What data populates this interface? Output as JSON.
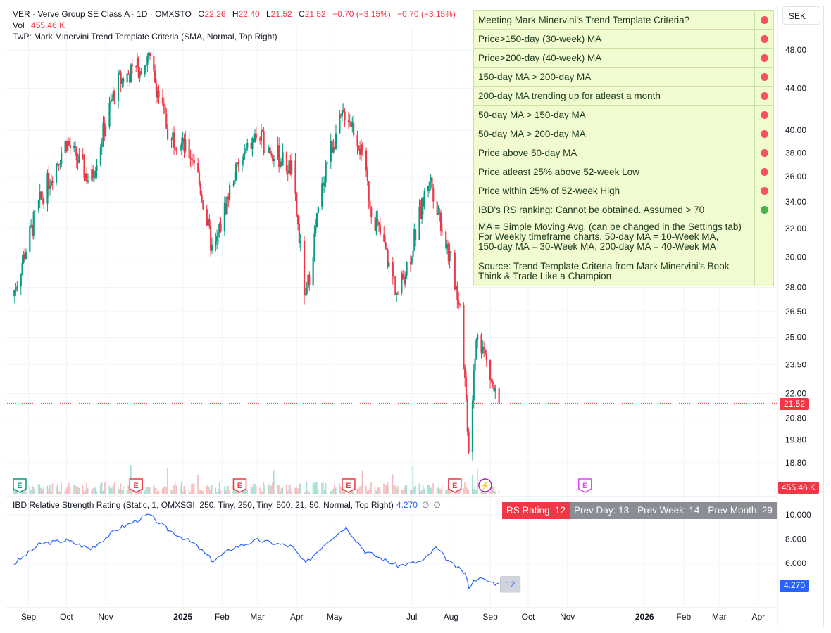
{
  "header": {
    "symbol_line": "VER · Verve Group SE Class A · 1D · OMXSTO",
    "o_label": "O",
    "o_value": "22.26",
    "h_label": "H",
    "h_value": "22.40",
    "l_label": "L",
    "l_value": "21.52",
    "c_label": "C",
    "c_value": "21.52",
    "change": "−0.70 (−3.15%)",
    "change2": "−0.70 (−3.15%)",
    "vol_label": "Vol",
    "vol_value": "455.46 K",
    "indicator_line": "TwP: Mark Minervini Trend Template Criteria (SMA, Normal, Top Right)"
  },
  "currency_button": "SEK",
  "trend_template": {
    "rows": [
      {
        "label": "Meeting Mark Minervini's Trend Template Criteria?",
        "status": "red"
      },
      {
        "label": "Price>150-day (30-week) MA",
        "status": "red"
      },
      {
        "label": "Price>200-day (40-week) MA",
        "status": "red"
      },
      {
        "label": "150-day MA > 200-day MA",
        "status": "red"
      },
      {
        "label": "200-day MA trending up for atleast a month",
        "status": "red"
      },
      {
        "label": "50-day MA > 150-day MA",
        "status": "red"
      },
      {
        "label": "50-day MA > 200-day MA",
        "status": "red"
      },
      {
        "label": "Price above 50-day MA",
        "status": "red"
      },
      {
        "label": "Price atleast 25% above 52-week Low",
        "status": "red"
      },
      {
        "label": "Price within 25% of 52-week High",
        "status": "red"
      },
      {
        "label": "IBD's RS ranking: Cannot be obtained. Assumed > 70",
        "status": "green"
      }
    ],
    "notes": "MA = Simple Moving Avg. (can be changed in the Settings tab)\nFor Weekly timeframe charts, 50-day MA = 10-Week MA,\n150-day MA = 30-Week MA, 200-day MA = 40-Week MA\n\nSource: Trend Template Criteria from Mark Minervini's Book\nThink & Trade Like a Champion"
  },
  "rs_indicator": {
    "label": "IBD Relative Strength Rating (Static, 1, OMXSGI, 250, Tiny, 250, Tiny, 500, 21, 50, Normal, Top Right)",
    "value": "4.270",
    "opt1": "∅",
    "opt2": "∅",
    "rs_rating": "RS Rating: 12",
    "prev_day": "Prev Day: 13",
    "prev_week": "Prev Week: 14",
    "prev_month": "Prev Month: 29",
    "line_end_label": "12"
  },
  "price_tags": {
    "last_price": "21.52",
    "volume": "455.46 K",
    "rs_value": "4.270"
  },
  "colors": {
    "up": "#089981",
    "down": "#f23645",
    "rs_line": "#2962ff",
    "red_dot": "#f7525f",
    "green_dot": "#4caf50",
    "panel_bg": "#f0fbd0"
  },
  "chart_data": {
    "type": "candlestick",
    "x_ticks": [
      "Sep",
      "Oct",
      "Nov",
      "2025",
      "Feb",
      "Mar",
      "Apr",
      "May",
      "Jul",
      "Aug",
      "Sep",
      "Oct",
      "Nov",
      "2026",
      "Feb",
      "Mar",
      "Apr"
    ],
    "price_ticks": [
      "48.00",
      "44.00",
      "40.00",
      "38.00",
      "36.00",
      "34.00",
      "32.00",
      "30.00",
      "28.00",
      "26.50",
      "25.00",
      "23.50",
      "22.00",
      "20.80",
      "19.80",
      "18.80"
    ],
    "rs_ticks": [
      "10.000",
      "8.000",
      "6.000"
    ],
    "price_scale": "log",
    "events": [
      "E",
      "E",
      "E",
      "E",
      "E",
      "⚡",
      "E"
    ],
    "approx_close_path": [
      {
        "date": "2024-08-20",
        "close": 27.5
      },
      {
        "date": "2024-09-10",
        "close": 34.0
      },
      {
        "date": "2024-10-01",
        "close": 39.0
      },
      {
        "date": "2024-10-20",
        "close": 35.5
      },
      {
        "date": "2024-11-10",
        "close": 44.5
      },
      {
        "date": "2024-12-05",
        "close": 47.0
      },
      {
        "date": "2024-12-20",
        "close": 40.0
      },
      {
        "date": "2025-01-10",
        "close": 37.5
      },
      {
        "date": "2025-01-25",
        "close": 30.0
      },
      {
        "date": "2025-02-10",
        "close": 36.0
      },
      {
        "date": "2025-02-28",
        "close": 39.5
      },
      {
        "date": "2025-03-15",
        "close": 38.0
      },
      {
        "date": "2025-03-28",
        "close": 36.5
      },
      {
        "date": "2025-04-08",
        "close": 27.0
      },
      {
        "date": "2025-04-25",
        "close": 37.5
      },
      {
        "date": "2025-05-10",
        "close": 42.0
      },
      {
        "date": "2025-05-20",
        "close": 39.0
      },
      {
        "date": "2025-05-30",
        "close": 33.5
      },
      {
        "date": "2025-06-20",
        "close": 27.5
      },
      {
        "date": "2025-07-01",
        "close": 30.5
      },
      {
        "date": "2025-07-15",
        "close": 36.0
      },
      {
        "date": "2025-07-28",
        "close": 31.0
      },
      {
        "date": "2025-08-08",
        "close": 27.0
      },
      {
        "date": "2025-08-15",
        "close": 19.5
      },
      {
        "date": "2025-08-22",
        "close": 25.5
      },
      {
        "date": "2025-09-03",
        "close": 22.3
      },
      {
        "date": "2025-09-08",
        "close": 21.52
      }
    ],
    "rs_approx_path": [
      {
        "date": "2024-08-20",
        "rs": 5.9
      },
      {
        "date": "2024-09-10",
        "rs": 7.6
      },
      {
        "date": "2024-10-01",
        "rs": 7.9
      },
      {
        "date": "2024-10-20",
        "rs": 7.2
      },
      {
        "date": "2024-11-10",
        "rs": 8.8
      },
      {
        "date": "2024-12-05",
        "rs": 10.0
      },
      {
        "date": "2024-12-20",
        "rs": 8.8
      },
      {
        "date": "2025-01-10",
        "rs": 7.6
      },
      {
        "date": "2025-01-25",
        "rs": 6.2
      },
      {
        "date": "2025-02-10",
        "rs": 7.3
      },
      {
        "date": "2025-03-01",
        "rs": 7.9
      },
      {
        "date": "2025-03-28",
        "rs": 7.4
      },
      {
        "date": "2025-04-08",
        "rs": 6.0
      },
      {
        "date": "2025-04-25",
        "rs": 7.8
      },
      {
        "date": "2025-05-10",
        "rs": 9.0
      },
      {
        "date": "2025-05-25",
        "rs": 7.0
      },
      {
        "date": "2025-06-20",
        "rs": 5.8
      },
      {
        "date": "2025-07-10",
        "rs": 6.2
      },
      {
        "date": "2025-07-20",
        "rs": 7.3
      },
      {
        "date": "2025-08-01",
        "rs": 6.0
      },
      {
        "date": "2025-08-12",
        "rs": 5.2
      },
      {
        "date": "2025-08-15",
        "rs": 4.1
      },
      {
        "date": "2025-08-22",
        "rs": 4.8
      },
      {
        "date": "2025-09-08",
        "rs": 4.27
      }
    ]
  }
}
